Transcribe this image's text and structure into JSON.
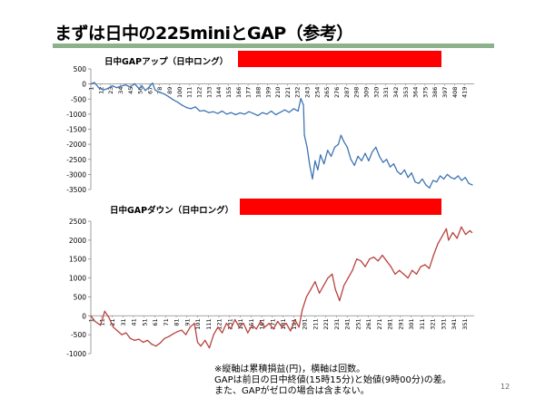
{
  "slide": {
    "title": "まずは日中の225miniとGAP（参考）",
    "page_number": "12",
    "footnote": [
      "※縦軸は累積損益(円)，横軸は回数。",
      "GAPは前日の日中終値(15時15分)と始値(9時00分)の差。",
      "また、GAPがゼロの場合は含まない。"
    ]
  },
  "colors": {
    "title_rule": "#8bb28a",
    "redaction": "#ff0000",
    "gap_up_line": "#3f75b4",
    "gap_down_line": "#b8433e",
    "axis": "#888888"
  },
  "chart_data": [
    {
      "type": "line",
      "title": "日中GAPアップ（日中ロング）",
      "redacted": true,
      "ylim": [
        -3500,
        500
      ],
      "yticks": [
        500,
        0,
        -500,
        -1000,
        -1500,
        -2000,
        -2500,
        -3000,
        -3500
      ],
      "xtick_labels": [
        "1",
        "12",
        "23",
        "34",
        "45",
        "56",
        "67",
        "78",
        "89",
        "100",
        "111",
        "122",
        "133",
        "144",
        "155",
        "166",
        "177",
        "188",
        "199",
        "210",
        "221",
        "232",
        "243",
        "254",
        "265",
        "276",
        "287",
        "298",
        "309",
        "320",
        "331",
        "342",
        "353",
        "364",
        "375",
        "386",
        "397",
        "408",
        "419"
      ],
      "x_range": [
        1,
        430
      ],
      "grid": false,
      "legend": "none",
      "series": [
        {
          "color": "#3f75b4",
          "points": [
            [
              1,
              0
            ],
            [
              5,
              50
            ],
            [
              10,
              -130
            ],
            [
              15,
              -200
            ],
            [
              20,
              -150
            ],
            [
              25,
              -60
            ],
            [
              30,
              -120
            ],
            [
              35,
              -70
            ],
            [
              40,
              -30
            ],
            [
              45,
              -100
            ],
            [
              50,
              10
            ],
            [
              55,
              -160
            ],
            [
              58,
              -50
            ],
            [
              62,
              -220
            ],
            [
              66,
              -110
            ],
            [
              70,
              30
            ],
            [
              73,
              -200
            ],
            [
              78,
              -280
            ],
            [
              83,
              -330
            ],
            [
              88,
              -420
            ],
            [
              93,
              -520
            ],
            [
              98,
              -600
            ],
            [
              103,
              -700
            ],
            [
              108,
              -780
            ],
            [
              113,
              -820
            ],
            [
              118,
              -760
            ],
            [
              123,
              -900
            ],
            [
              128,
              -880
            ],
            [
              133,
              -950
            ],
            [
              138,
              -920
            ],
            [
              143,
              -980
            ],
            [
              148,
              -900
            ],
            [
              153,
              -1000
            ],
            [
              158,
              -950
            ],
            [
              163,
              -1020
            ],
            [
              168,
              -960
            ],
            [
              173,
              -1000
            ],
            [
              178,
              -920
            ],
            [
              183,
              -980
            ],
            [
              188,
              -1050
            ],
            [
              193,
              -950
            ],
            [
              198,
              -1000
            ],
            [
              203,
              -900
            ],
            [
              208,
              -1020
            ],
            [
              213,
              -940
            ],
            [
              218,
              -860
            ],
            [
              223,
              -940
            ],
            [
              228,
              -820
            ],
            [
              233,
              -900
            ],
            [
              236,
              -480
            ],
            [
              239,
              -700
            ],
            [
              240,
              -1700
            ],
            [
              243,
              -2100
            ],
            [
              246,
              -2700
            ],
            [
              249,
              -3150
            ],
            [
              252,
              -2550
            ],
            [
              255,
              -2850
            ],
            [
              258,
              -2350
            ],
            [
              262,
              -2650
            ],
            [
              266,
              -2200
            ],
            [
              270,
              -2400
            ],
            [
              274,
              -2100
            ],
            [
              278,
              -2000
            ],
            [
              281,
              -1700
            ],
            [
              284,
              -1900
            ],
            [
              288,
              -2100
            ],
            [
              292,
              -2500
            ],
            [
              296,
              -2700
            ],
            [
              300,
              -2400
            ],
            [
              304,
              -2550
            ],
            [
              308,
              -2300
            ],
            [
              312,
              -2550
            ],
            [
              316,
              -2250
            ],
            [
              320,
              -2100
            ],
            [
              324,
              -2400
            ],
            [
              328,
              -2600
            ],
            [
              332,
              -2500
            ],
            [
              336,
              -2750
            ],
            [
              340,
              -2650
            ],
            [
              344,
              -2900
            ],
            [
              348,
              -3000
            ],
            [
              352,
              -2850
            ],
            [
              356,
              -3100
            ],
            [
              360,
              -2950
            ],
            [
              364,
              -3250
            ],
            [
              368,
              -3300
            ],
            [
              372,
              -3150
            ],
            [
              376,
              -3350
            ],
            [
              380,
              -3450
            ],
            [
              384,
              -3200
            ],
            [
              388,
              -3250
            ],
            [
              392,
              -3050
            ],
            [
              396,
              -3150
            ],
            [
              400,
              -3000
            ],
            [
              404,
              -3100
            ],
            [
              408,
              -3150
            ],
            [
              412,
              -3050
            ],
            [
              416,
              -3200
            ],
            [
              420,
              -3100
            ],
            [
              424,
              -3300
            ],
            [
              428,
              -3350
            ]
          ]
        }
      ]
    },
    {
      "type": "line",
      "title": "日中GAPダウン（日中ロング）",
      "redacted": true,
      "ylim": [
        -1000,
        2500
      ],
      "yticks": [
        2500,
        2000,
        1500,
        1000,
        500,
        0,
        -500,
        -1000
      ],
      "xtick_labels": [
        "1",
        "11",
        "21",
        "31",
        "41",
        "51",
        "61",
        "71",
        "81",
        "91",
        "101",
        "111",
        "121",
        "131",
        "141",
        "151",
        "161",
        "171",
        "181",
        "191",
        "201",
        "211",
        "221",
        "231",
        "241",
        "251",
        "261",
        "271",
        "281",
        "291",
        "301",
        "311",
        "321",
        "331",
        "341",
        "351"
      ],
      "x_range": [
        1,
        360
      ],
      "grid": false,
      "legend": "none",
      "series": [
        {
          "color": "#b8433e",
          "points": [
            [
              1,
              0
            ],
            [
              5,
              -150
            ],
            [
              10,
              -250
            ],
            [
              14,
              120
            ],
            [
              18,
              -50
            ],
            [
              22,
              -300
            ],
            [
              26,
              -400
            ],
            [
              30,
              -500
            ],
            [
              34,
              -450
            ],
            [
              38,
              -600
            ],
            [
              42,
              -650
            ],
            [
              46,
              -620
            ],
            [
              50,
              -700
            ],
            [
              54,
              -650
            ],
            [
              58,
              -750
            ],
            [
              62,
              -800
            ],
            [
              66,
              -720
            ],
            [
              70,
              -600
            ],
            [
              74,
              -550
            ],
            [
              78,
              -480
            ],
            [
              82,
              -420
            ],
            [
              86,
              -380
            ],
            [
              90,
              -500
            ],
            [
              94,
              -300
            ],
            [
              98,
              -200
            ],
            [
              101,
              -700
            ],
            [
              104,
              -800
            ],
            [
              108,
              -650
            ],
            [
              112,
              -850
            ],
            [
              116,
              -500
            ],
            [
              120,
              -300
            ],
            [
              124,
              -450
            ],
            [
              128,
              -200
            ],
            [
              132,
              -350
            ],
            [
              136,
              -100
            ],
            [
              140,
              -300
            ],
            [
              144,
              -200
            ],
            [
              148,
              -450
            ],
            [
              152,
              -250
            ],
            [
              156,
              -350
            ],
            [
              160,
              -150
            ],
            [
              164,
              -300
            ],
            [
              168,
              -200
            ],
            [
              172,
              -350
            ],
            [
              176,
              -150
            ],
            [
              180,
              -300
            ],
            [
              184,
              -200
            ],
            [
              188,
              -400
            ],
            [
              192,
              -100
            ],
            [
              196,
              -300
            ],
            [
              199,
              150
            ],
            [
              203,
              500
            ],
            [
              207,
              700
            ],
            [
              211,
              900
            ],
            [
              215,
              600
            ],
            [
              219,
              800
            ],
            [
              223,
              1000
            ],
            [
              227,
              1100
            ],
            [
              230,
              700
            ],
            [
              234,
              400
            ],
            [
              238,
              800
            ],
            [
              242,
              1000
            ],
            [
              246,
              1200
            ],
            [
              250,
              1500
            ],
            [
              254,
              1450
            ],
            [
              258,
              1300
            ],
            [
              262,
              1500
            ],
            [
              266,
              1550
            ],
            [
              270,
              1450
            ],
            [
              274,
              1600
            ],
            [
              278,
              1450
            ],
            [
              282,
              1300
            ],
            [
              286,
              1100
            ],
            [
              290,
              1200
            ],
            [
              294,
              1100
            ],
            [
              298,
              1000
            ],
            [
              302,
              1200
            ],
            [
              306,
              1100
            ],
            [
              310,
              1300
            ],
            [
              314,
              1350
            ],
            [
              318,
              1250
            ],
            [
              322,
              1600
            ],
            [
              326,
              1900
            ],
            [
              330,
              2100
            ],
            [
              334,
              2300
            ],
            [
              336,
              2000
            ],
            [
              340,
              2200
            ],
            [
              344,
              2050
            ],
            [
              348,
              2350
            ],
            [
              352,
              2150
            ],
            [
              356,
              2250
            ],
            [
              358,
              2200
            ]
          ]
        }
      ]
    }
  ]
}
